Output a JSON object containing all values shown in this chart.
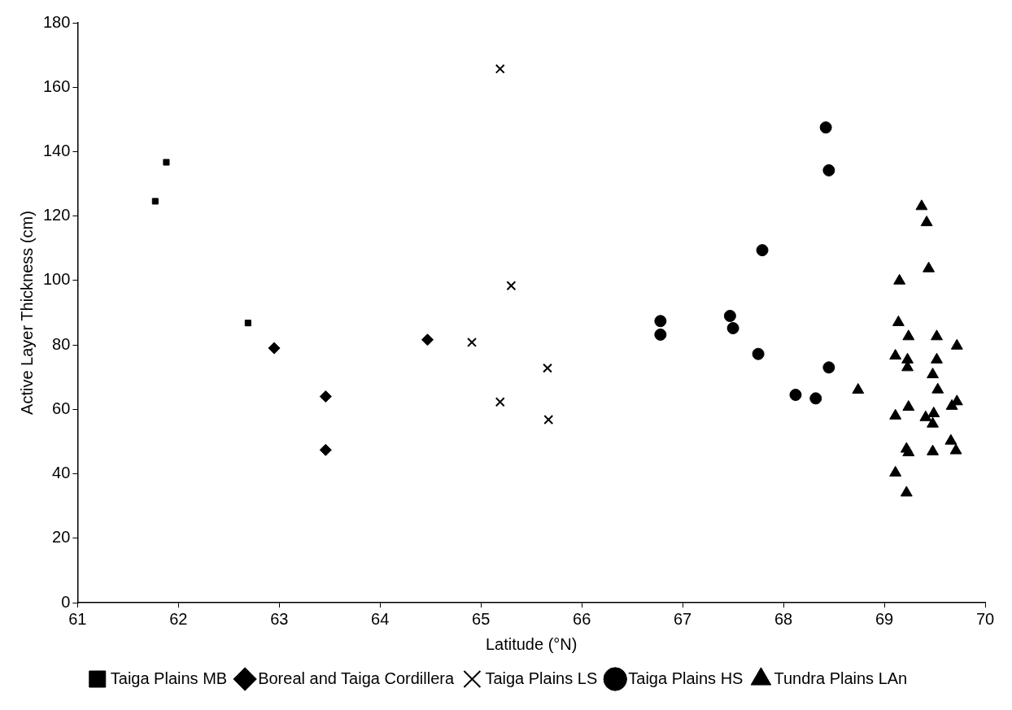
{
  "chart_data": {
    "type": "scatter",
    "xlabel": "Latitude (°N)",
    "ylabel": "Active Layer Thickness (cm)",
    "xlim": [
      61,
      70
    ],
    "xticks": [
      61,
      62,
      63,
      64,
      65,
      66,
      67,
      68,
      69,
      70
    ],
    "ylim": [
      0,
      180
    ],
    "yticks": [
      0,
      20,
      40,
      60,
      80,
      100,
      120,
      140,
      160,
      180
    ],
    "grid": false,
    "legend": "bottom",
    "series": [
      {
        "name": "Taiga Plains MB",
        "color": "#000000",
        "marker": "square",
        "x": [
          61.77,
          61.88,
          62.69
        ],
        "values": [
          124.6,
          136.7,
          86.8
        ]
      },
      {
        "name": "Boreal and Taiga Cordillera",
        "color": "#000000",
        "marker": "diamond",
        "x": [
          62.95,
          63.46,
          63.46,
          64.47
        ],
        "values": [
          79,
          64,
          47.4,
          81.6
        ]
      },
      {
        "name": "Taiga Plains LS",
        "color": "#000000",
        "marker": "cross",
        "x": [
          65.19,
          65.3,
          64.91,
          65.66,
          65.19,
          65.67
        ],
        "values": [
          165.7,
          98.4,
          80.8,
          72.8,
          62.3,
          56.8
        ]
      },
      {
        "name": "Taiga Plains HS",
        "color": "#000000",
        "marker": "circle",
        "x": [
          66.78,
          66.78,
          67.47,
          67.5,
          67.75,
          67.79,
          68.42,
          68.45,
          68.12,
          68.32,
          68.45
        ],
        "values": [
          87.4,
          83.2,
          89,
          85.2,
          77.2,
          109.4,
          147.5,
          134.2,
          64.5,
          63.4,
          73
        ]
      },
      {
        "name": "Tundra Plains LAn",
        "color": "#000000",
        "marker": "triangle",
        "x": [
          69.37,
          69.42,
          69.44,
          69.15,
          69.14,
          69.24,
          69.52,
          69.72,
          69.11,
          69.23,
          69.52,
          69.23,
          69.48,
          69.53,
          69.67,
          69.72,
          69.24,
          69.11,
          69.41,
          69.49,
          69.48,
          69.66,
          69.71,
          69.22,
          69.24,
          69.48,
          69.11,
          69.22,
          68.74
        ],
        "values": [
          123,
          118,
          103.7,
          99.9,
          87,
          82.6,
          82.6,
          79.7,
          76.6,
          75.4,
          75.4,
          73,
          70.8,
          66.1,
          61,
          62.4,
          60.7,
          58,
          57.5,
          58.7,
          55.5,
          50.2,
          47.2,
          47.7,
          46.6,
          46.9,
          40.3,
          34.1,
          66
        ]
      }
    ]
  }
}
